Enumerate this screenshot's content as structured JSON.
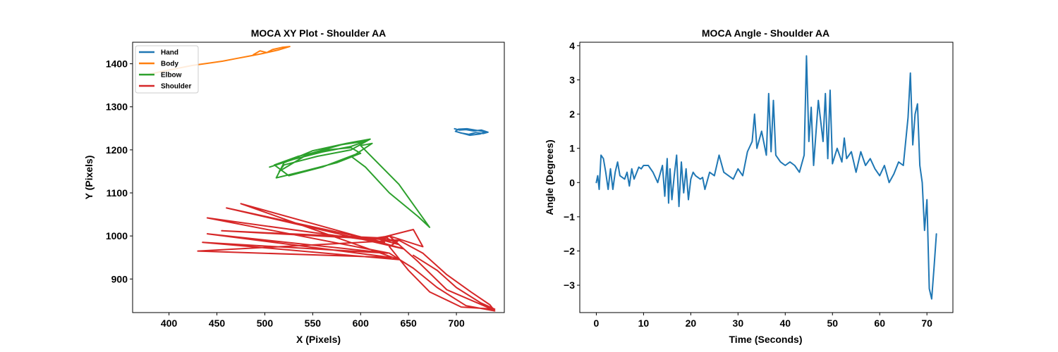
{
  "chart_data": [
    {
      "type": "line",
      "title": "MOCA XY Plot - Shoulder AA",
      "xlabel": "X (Pixels)",
      "ylabel": "Y (Pixels)",
      "xlim": [
        362,
        750
      ],
      "ylim": [
        822,
        1450
      ],
      "xticks": [
        400,
        450,
        500,
        550,
        600,
        650,
        700
      ],
      "yticks": [
        900,
        1000,
        1100,
        1200,
        1300,
        1400
      ],
      "grid": false,
      "legend_position": "top-left",
      "series": [
        {
          "name": "Hand",
          "color": "#1f77b4",
          "x": [
            698,
            703,
            710,
            718,
            726,
            733,
            728,
            720,
            713,
            705,
            699,
            702,
            711,
            722,
            730,
            725,
            714,
            702
          ],
          "y": [
            1249,
            1246,
            1247,
            1244,
            1246,
            1241,
            1238,
            1240,
            1236,
            1239,
            1243,
            1248,
            1249,
            1245,
            1242,
            1237,
            1234,
            1241
          ]
        },
        {
          "name": "Body",
          "color": "#ff7f0e",
          "x": [
            378,
            392,
            408,
            424,
            440,
            456,
            470,
            484,
            496,
            506,
            514,
            520,
            526,
            518,
            508,
            502,
            495,
            488
          ],
          "y": [
            1375,
            1382,
            1389,
            1396,
            1401,
            1406,
            1412,
            1418,
            1423,
            1428,
            1432,
            1436,
            1440,
            1438,
            1433,
            1426,
            1430,
            1421
          ]
        },
        {
          "name": "Elbow",
          "color": "#2ca02c",
          "x": [
            505,
            530,
            560,
            590,
            605,
            580,
            545,
            515,
            520,
            555,
            590,
            610,
            585,
            550,
            520,
            512,
            540,
            575,
            600,
            590,
            565,
            535,
            510,
            525,
            560,
            595,
            612,
            600,
            640,
            672,
            660,
            630,
            605,
            590
          ],
          "y": [
            1160,
            1178,
            1195,
            1208,
            1220,
            1212,
            1190,
            1150,
            1165,
            1185,
            1200,
            1225,
            1215,
            1198,
            1170,
            1135,
            1150,
            1170,
            1192,
            1205,
            1200,
            1185,
            1165,
            1140,
            1160,
            1190,
            1215,
            1210,
            1120,
            1020,
            1045,
            1100,
            1160,
            1185
          ]
        },
        {
          "name": "Shoulder",
          "color": "#d62728",
          "x": [
            655,
            680,
            700,
            725,
            740,
            705,
            672,
            650,
            630,
            640,
            665,
            690,
            715,
            735,
            740,
            710,
            680,
            655,
            630,
            440,
            625,
            460,
            645,
            475,
            640,
            435,
            628,
            440,
            632,
            430,
            640,
            455,
            626,
            630,
            665,
            655,
            625,
            640,
            615,
            630,
            660,
            690,
            735
          ],
          "y": [
            955,
            920,
            880,
            845,
            830,
            835,
            870,
            920,
            975,
            990,
            960,
            910,
            870,
            840,
            826,
            838,
            880,
            925,
            960,
            1042,
            985,
            1065,
            970,
            1075,
            945,
            985,
            960,
            1005,
            950,
            965,
            990,
            1012,
            995,
            1000,
            975,
            1015,
            998,
            980,
            995,
            1000,
            940,
            875,
            832
          ]
        }
      ]
    },
    {
      "type": "line",
      "title": "MOCA Angle - Shoulder AA",
      "xlabel": "Time (Seconds)",
      "ylabel": "Angle (Degrees)",
      "xlim": [
        -3.5,
        75.5
      ],
      "ylim": [
        -3.8,
        4.1
      ],
      "xticks": [
        0,
        10,
        20,
        30,
        40,
        50,
        60,
        70
      ],
      "yticks": [
        -3,
        -2,
        -1,
        0,
        1,
        2,
        3,
        4
      ],
      "grid": false,
      "series": [
        {
          "name": "",
          "color": "#1f77b4",
          "x": [
            0,
            0.3,
            0.6,
            1,
            1.5,
            2,
            2.5,
            3,
            3.5,
            4,
            4.5,
            5,
            6,
            6.5,
            7,
            7.5,
            8,
            9,
            9.5,
            10,
            11,
            12,
            13,
            14,
            14.5,
            15,
            15.3,
            15.6,
            16,
            16.5,
            17,
            17.5,
            18,
            18.5,
            19,
            19.5,
            20,
            20.5,
            21,
            22,
            22.5,
            23,
            24,
            25,
            26,
            27,
            28,
            29,
            30,
            31,
            32,
            33,
            33.5,
            34,
            35,
            36,
            36.5,
            37,
            37.5,
            38,
            39,
            40,
            41,
            42,
            43,
            44,
            44.5,
            45,
            45.5,
            46,
            47,
            48,
            48.5,
            49,
            49.5,
            50,
            51,
            52,
            52.5,
            53,
            54,
            55,
            56,
            57,
            58,
            59,
            60,
            61,
            62,
            63,
            64,
            65,
            66,
            66.5,
            67,
            67.5,
            68,
            68.5,
            69,
            69.5,
            70,
            70.5,
            71,
            71.5,
            72
          ],
          "y": [
            0,
            0.2,
            -0.2,
            0.8,
            0.7,
            0.3,
            -0.2,
            0.4,
            -0.2,
            0.3,
            0.6,
            0.2,
            0.1,
            0.3,
            -0.1,
            0.4,
            0.1,
            0.45,
            0.4,
            0.5,
            0.5,
            0.3,
            0,
            0.5,
            -0.4,
            0.7,
            -0.6,
            0.4,
            -0.5,
            0.2,
            0.8,
            -0.7,
            0.6,
            -0.3,
            0.4,
            -0.5,
            0.1,
            0.3,
            0.2,
            0.1,
            0.15,
            -0.2,
            0.3,
            0.2,
            0.8,
            0.3,
            0.2,
            0.1,
            0.4,
            0.2,
            0.9,
            1.2,
            2.0,
            1.0,
            1.5,
            0.8,
            2.6,
            0.9,
            2.4,
            0.8,
            0.6,
            0.5,
            0.6,
            0.5,
            0.3,
            0.8,
            3.7,
            1.2,
            2.2,
            0.5,
            2.4,
            1.2,
            2.6,
            0.7,
            2.7,
            0.55,
            1.0,
            0.6,
            1.3,
            0.7,
            0.9,
            0.3,
            0.9,
            0.5,
            0.7,
            0.4,
            0.2,
            0.5,
            0.0,
            0.25,
            0.6,
            0.5,
            1.9,
            3.2,
            1.1,
            2.0,
            2.3,
            0.5,
            0,
            -1.4,
            -0.5,
            -3.1,
            -3.4,
            -2.5,
            -1.5
          ]
        }
      ]
    }
  ]
}
